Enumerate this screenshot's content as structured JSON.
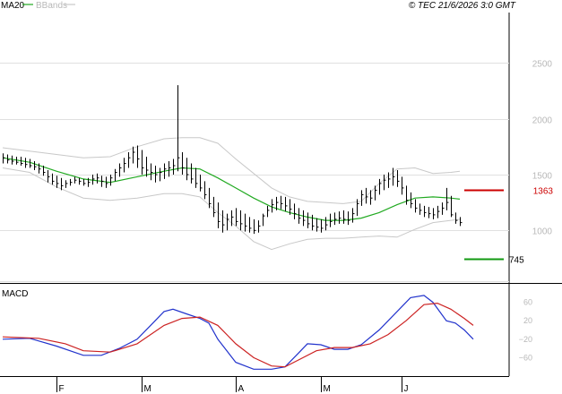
{
  "header": {
    "legend_ma": "MA20",
    "legend_bb": "BBands",
    "copyright": "© TEC 21/6/2026 3:0 GMT"
  },
  "colors": {
    "ma": "#22aa22",
    "bands": "#c8c8c8",
    "price": "#000000",
    "macd": "#2233cc",
    "signal": "#cc2222",
    "resistance": "#cc0000",
    "support": "#119911",
    "grid": "#e0e0e0",
    "axis_text": "#b8b8b8"
  },
  "macd_panel": {
    "label": "MACD"
  },
  "chart_data": [
    {
      "type": "ohlc",
      "title": "",
      "ylim": [
        530,
        2950
      ],
      "y_ticks": [
        1000,
        1500,
        2000,
        2500
      ],
      "y_tick_labels": [
        "1000",
        "1500",
        "2000",
        "2500"
      ],
      "x_ticks": [
        "F",
        "M",
        "A",
        "M",
        "J"
      ],
      "x_tick_bar_index": [
        12,
        31,
        52,
        71,
        89
      ],
      "grid": true,
      "resistance": {
        "value": 1363,
        "label": "1363"
      },
      "support": {
        "value": 745,
        "label": "745"
      },
      "bars": [
        [
          1690,
          1600,
          1650
        ],
        [
          1680,
          1600,
          1630
        ],
        [
          1670,
          1590,
          1620
        ],
        [
          1660,
          1590,
          1610
        ],
        [
          1660,
          1580,
          1600
        ],
        [
          1650,
          1560,
          1590
        ],
        [
          1640,
          1560,
          1580
        ],
        [
          1620,
          1540,
          1570
        ],
        [
          1600,
          1510,
          1550
        ],
        [
          1580,
          1490,
          1520
        ],
        [
          1540,
          1430,
          1480
        ],
        [
          1510,
          1410,
          1440
        ],
        [
          1490,
          1380,
          1420
        ],
        [
          1470,
          1360,
          1400
        ],
        [
          1450,
          1380,
          1420
        ],
        [
          1460,
          1400,
          1430
        ],
        [
          1480,
          1420,
          1450
        ],
        [
          1470,
          1410,
          1440
        ],
        [
          1460,
          1400,
          1420
        ],
        [
          1470,
          1390,
          1430
        ],
        [
          1500,
          1410,
          1460
        ],
        [
          1510,
          1420,
          1470
        ],
        [
          1490,
          1390,
          1440
        ],
        [
          1480,
          1380,
          1420
        ],
        [
          1500,
          1400,
          1470
        ],
        [
          1550,
          1440,
          1520
        ],
        [
          1600,
          1480,
          1560
        ],
        [
          1650,
          1520,
          1600
        ],
        [
          1700,
          1560,
          1650
        ],
        [
          1750,
          1600,
          1700
        ],
        [
          1760,
          1560,
          1640
        ],
        [
          1720,
          1500,
          1560
        ],
        [
          1660,
          1480,
          1540
        ],
        [
          1600,
          1450,
          1520
        ],
        [
          1580,
          1430,
          1500
        ],
        [
          1560,
          1440,
          1520
        ],
        [
          1600,
          1460,
          1550
        ],
        [
          1620,
          1480,
          1560
        ],
        [
          1640,
          1500,
          1580
        ],
        [
          2300,
          1530,
          1650
        ],
        [
          1700,
          1500,
          1560
        ],
        [
          1650,
          1450,
          1500
        ],
        [
          1600,
          1420,
          1460
        ],
        [
          1560,
          1380,
          1420
        ],
        [
          1500,
          1350,
          1380
        ],
        [
          1440,
          1280,
          1320
        ],
        [
          1380,
          1200,
          1240
        ],
        [
          1300,
          1120,
          1160
        ],
        [
          1250,
          1020,
          1080
        ],
        [
          1180,
          980,
          1050
        ],
        [
          1150,
          1000,
          1100
        ],
        [
          1180,
          1040,
          1120
        ],
        [
          1200,
          1040,
          1080
        ],
        [
          1180,
          1000,
          1060
        ],
        [
          1150,
          990,
          1040
        ],
        [
          1120,
          980,
          1020
        ],
        [
          1100,
          970,
          1000
        ],
        [
          1090,
          980,
          1040
        ],
        [
          1150,
          1040,
          1130
        ],
        [
          1220,
          1120,
          1180
        ],
        [
          1280,
          1160,
          1230
        ],
        [
          1300,
          1180,
          1250
        ],
        [
          1310,
          1190,
          1240
        ],
        [
          1300,
          1170,
          1220
        ],
        [
          1280,
          1140,
          1190
        ],
        [
          1240,
          1100,
          1150
        ],
        [
          1200,
          1060,
          1110
        ],
        [
          1180,
          1040,
          1090
        ],
        [
          1160,
          1020,
          1060
        ],
        [
          1140,
          1000,
          1040
        ],
        [
          1110,
          990,
          1030
        ],
        [
          1100,
          980,
          1020
        ],
        [
          1120,
          1000,
          1050
        ],
        [
          1150,
          1030,
          1080
        ],
        [
          1160,
          1050,
          1100
        ],
        [
          1170,
          1060,
          1110
        ],
        [
          1180,
          1060,
          1100
        ],
        [
          1170,
          1050,
          1090
        ],
        [
          1200,
          1070,
          1150
        ],
        [
          1280,
          1130,
          1240
        ],
        [
          1360,
          1220,
          1320
        ],
        [
          1380,
          1240,
          1300
        ],
        [
          1360,
          1230,
          1290
        ],
        [
          1400,
          1270,
          1360
        ],
        [
          1460,
          1320,
          1420
        ],
        [
          1500,
          1360,
          1450
        ],
        [
          1520,
          1380,
          1460
        ],
        [
          1560,
          1400,
          1480
        ],
        [
          1540,
          1390,
          1440
        ],
        [
          1480,
          1320,
          1380
        ],
        [
          1400,
          1230,
          1270
        ],
        [
          1340,
          1200,
          1240
        ],
        [
          1280,
          1160,
          1200
        ],
        [
          1240,
          1140,
          1180
        ],
        [
          1220,
          1120,
          1160
        ],
        [
          1210,
          1110,
          1150
        ],
        [
          1200,
          1100,
          1140
        ],
        [
          1220,
          1110,
          1170
        ],
        [
          1250,
          1140,
          1200
        ],
        [
          1380,
          1180,
          1250
        ],
        [
          1310,
          1120,
          1140
        ],
        [
          1160,
          1060,
          1090
        ],
        [
          1120,
          1040,
          1070
        ]
      ],
      "ma20": [
        [
          0,
          1650
        ],
        [
          6,
          1610
        ],
        [
          12,
          1530
        ],
        [
          18,
          1460
        ],
        [
          24,
          1430
        ],
        [
          30,
          1480
        ],
        [
          36,
          1530
        ],
        [
          40,
          1560
        ],
        [
          44,
          1550
        ],
        [
          48,
          1470
        ],
        [
          52,
          1380
        ],
        [
          56,
          1290
        ],
        [
          60,
          1210
        ],
        [
          64,
          1160
        ],
        [
          68,
          1120
        ],
        [
          72,
          1090
        ],
        [
          76,
          1090
        ],
        [
          80,
          1110
        ],
        [
          84,
          1160
        ],
        [
          88,
          1230
        ],
        [
          92,
          1290
        ],
        [
          96,
          1300
        ],
        [
          100,
          1290
        ],
        [
          102,
          1280
        ]
      ],
      "bb_upper": [
        [
          0,
          1740
        ],
        [
          6,
          1710
        ],
        [
          12,
          1680
        ],
        [
          18,
          1650
        ],
        [
          24,
          1660
        ],
        [
          30,
          1750
        ],
        [
          36,
          1820
        ],
        [
          40,
          1830
        ],
        [
          44,
          1830
        ],
        [
          48,
          1780
        ],
        [
          52,
          1640
        ],
        [
          56,
          1510
        ],
        [
          60,
          1380
        ],
        [
          64,
          1300
        ],
        [
          68,
          1260
        ],
        [
          72,
          1250
        ],
        [
          76,
          1240
        ],
        [
          80,
          1260
        ],
        [
          84,
          1420
        ],
        [
          88,
          1550
        ],
        [
          92,
          1560
        ],
        [
          96,
          1510
        ],
        [
          100,
          1520
        ],
        [
          102,
          1530
        ]
      ],
      "bb_lower": [
        [
          0,
          1560
        ],
        [
          6,
          1520
        ],
        [
          12,
          1390
        ],
        [
          18,
          1290
        ],
        [
          24,
          1270
        ],
        [
          30,
          1290
        ],
        [
          36,
          1330
        ],
        [
          40,
          1330
        ],
        [
          44,
          1300
        ],
        [
          48,
          1160
        ],
        [
          52,
          1040
        ],
        [
          56,
          900
        ],
        [
          60,
          830
        ],
        [
          64,
          880
        ],
        [
          68,
          920
        ],
        [
          72,
          930
        ],
        [
          76,
          930
        ],
        [
          80,
          940
        ],
        [
          84,
          950
        ],
        [
          88,
          940
        ],
        [
          92,
          1010
        ],
        [
          96,
          1070
        ],
        [
          100,
          1090
        ],
        [
          102,
          1100
        ]
      ]
    },
    {
      "type": "line",
      "title": "",
      "ylim": [
        -100,
        100
      ],
      "y_ticks": [
        60,
        20,
        -20,
        -60
      ],
      "y_tick_labels": [
        "60",
        "20",
        "−20",
        "−60"
      ],
      "series": [
        {
          "color": "#2233cc",
          "points": [
            [
              0,
              -20
            ],
            [
              6,
              -18
            ],
            [
              12,
              -35
            ],
            [
              18,
              -55
            ],
            [
              22,
              -55
            ],
            [
              26,
              -40
            ],
            [
              30,
              -20
            ],
            [
              33,
              10
            ],
            [
              36,
              40
            ],
            [
              38,
              45
            ],
            [
              41,
              35
            ],
            [
              44,
              25
            ],
            [
              46,
              15
            ],
            [
              48,
              -20
            ],
            [
              52,
              -70
            ],
            [
              56,
              -85
            ],
            [
              60,
              -85
            ],
            [
              63,
              -80
            ],
            [
              66,
              -50
            ],
            [
              68,
              -30
            ],
            [
              71,
              -32
            ],
            [
              74,
              -42
            ],
            [
              77,
              -42
            ],
            [
              80,
              -32
            ],
            [
              84,
              0
            ],
            [
              88,
              40
            ],
            [
              91,
              70
            ],
            [
              94,
              75
            ],
            [
              96,
              60
            ],
            [
              99,
              20
            ],
            [
              101,
              15
            ],
            [
              103,
              0
            ],
            [
              105,
              -20
            ]
          ]
        },
        {
          "color": "#cc2222",
          "points": [
            [
              0,
              -15
            ],
            [
              8,
              -18
            ],
            [
              14,
              -30
            ],
            [
              18,
              -45
            ],
            [
              24,
              -48
            ],
            [
              30,
              -30
            ],
            [
              36,
              10
            ],
            [
              40,
              25
            ],
            [
              44,
              28
            ],
            [
              48,
              10
            ],
            [
              52,
              -30
            ],
            [
              56,
              -60
            ],
            [
              60,
              -78
            ],
            [
              63,
              -80
            ],
            [
              66,
              -65
            ],
            [
              70,
              -45
            ],
            [
              74,
              -38
            ],
            [
              78,
              -38
            ],
            [
              82,
              -30
            ],
            [
              86,
              -10
            ],
            [
              90,
              20
            ],
            [
              94,
              55
            ],
            [
              97,
              58
            ],
            [
              100,
              45
            ],
            [
              103,
              25
            ],
            [
              105,
              10
            ]
          ]
        }
      ]
    }
  ]
}
